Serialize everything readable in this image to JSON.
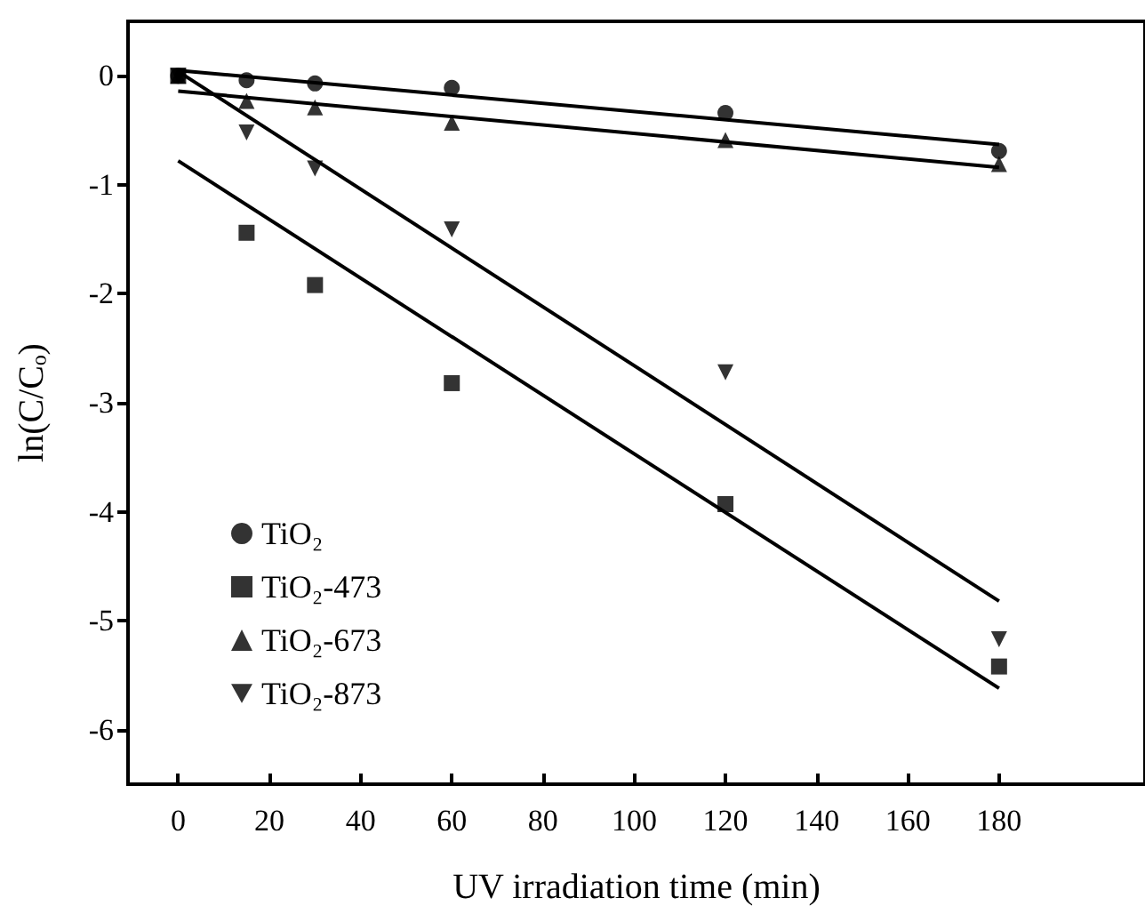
{
  "chart_data": {
    "type": "scatter",
    "xlabel": "UV irradiation time (min)",
    "ylabel": "ln(C/Cₒ)",
    "xlim": [
      -11,
      212
    ],
    "xticks": [
      0,
      20,
      40,
      60,
      80,
      100,
      120,
      140,
      160,
      180
    ],
    "ylim": [
      -6.5,
      0.5
    ],
    "yticks": [
      0,
      -1,
      -2,
      -3,
      -4,
      -5,
      -6
    ],
    "grid": false,
    "legend": "bottom left",
    "series": [
      {
        "name": "TiO₂",
        "marker": "circle",
        "color": "#000000",
        "x": [
          0,
          15,
          30,
          60,
          120,
          180
        ],
        "values": [
          0,
          -0.04,
          -0.07,
          -0.11,
          -0.34,
          -0.69
        ]
      },
      {
        "name": "TiO₂-473",
        "marker": "square",
        "color": "#000000",
        "x": [
          0,
          15,
          30,
          60,
          120,
          180
        ],
        "values": [
          0,
          -1.44,
          -1.92,
          -2.82,
          -3.93,
          -5.42
        ]
      },
      {
        "name": "TiO₂-673",
        "marker": "triangle",
        "color": "#000000",
        "x": [
          0,
          15,
          30,
          60,
          120,
          180
        ],
        "values": [
          0,
          -0.23,
          -0.29,
          -0.43,
          -0.59,
          -0.81
        ]
      },
      {
        "name": "TiO₂-873",
        "marker": "triangle_down",
        "color": "#000000",
        "x": [
          0,
          15,
          30,
          60,
          120,
          180
        ],
        "values": [
          0,
          -0.52,
          -0.85,
          -1.41,
          -2.72,
          -5.17
        ]
      },
      {
        "type": "line",
        "marker": "none",
        "line_style": "solid",
        "color": "#000000",
        "x": [
          0,
          180
        ],
        "values": [
          0.05,
          -0.63
        ]
      },
      {
        "type": "line",
        "marker": "none",
        "line_style": "solid",
        "color": "#000000",
        "x": [
          0,
          180
        ],
        "values": [
          -0.78,
          -5.62
        ]
      },
      {
        "type": "line",
        "marker": "none",
        "line_style": "solid",
        "color": "#000000",
        "x": [
          0,
          180
        ],
        "values": [
          -0.14,
          -0.84
        ]
      },
      {
        "type": "line",
        "marker": "none",
        "line_style": "solid",
        "color": "#000000",
        "x": [
          0,
          180
        ],
        "values": [
          0.04,
          -4.82
        ]
      }
    ]
  }
}
